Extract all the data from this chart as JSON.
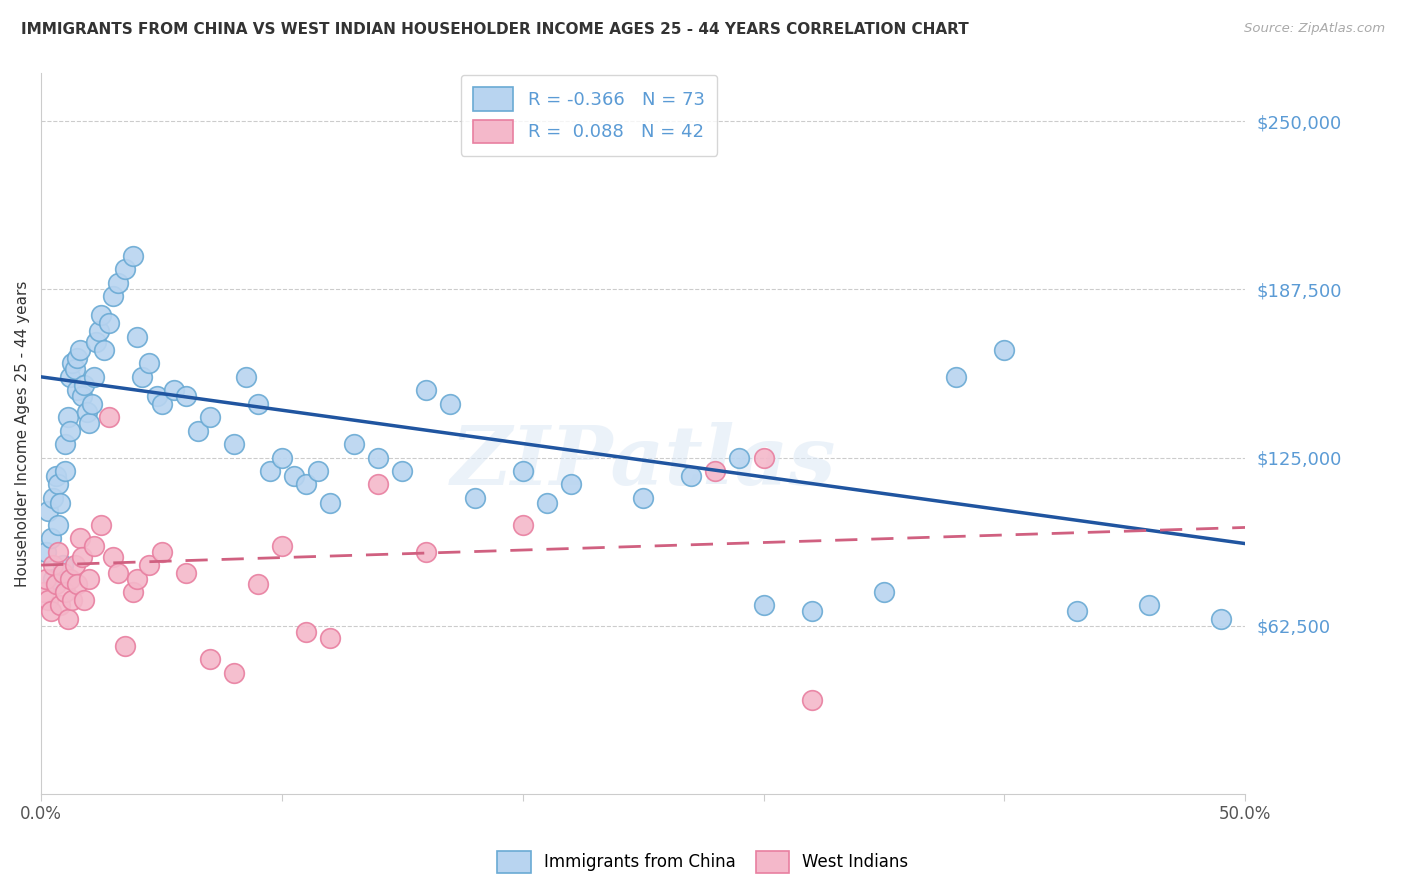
{
  "title": "IMMIGRANTS FROM CHINA VS WEST INDIAN HOUSEHOLDER INCOME AGES 25 - 44 YEARS CORRELATION CHART",
  "source": "Source: ZipAtlas.com",
  "ylabel": "Householder Income Ages 25 - 44 years",
  "ytick_labels": [
    "$250,000",
    "$187,500",
    "$125,000",
    "$62,500"
  ],
  "ytick_values": [
    250000,
    187500,
    125000,
    62500
  ],
  "ylim": [
    0,
    268000
  ],
  "xlim": [
    0.0,
    0.5
  ],
  "xtick_positions": [
    0.0,
    0.1,
    0.2,
    0.3,
    0.4,
    0.5
  ],
  "xtick_labels_show": [
    "0.0%",
    "",
    "",
    "",
    "",
    "50.0%"
  ],
  "china_R": "-0.366",
  "china_N": "73",
  "westindian_R": "0.088",
  "westindian_N": "42",
  "china_face": "#b8d4f0",
  "china_edge": "#6aaad4",
  "wi_face": "#f4b8ca",
  "wi_edge": "#e87fa0",
  "china_line_color": "#2055a0",
  "wi_line_color": "#d06080",
  "grid_color": "#cccccc",
  "text_color": "#333333",
  "source_color": "#aaaaaa",
  "axis_label_color": "#5b9bd5",
  "bg": "#ffffff",
  "watermark": "ZIPatlas",
  "china_line_x0": 0.0,
  "china_line_y0": 155000,
  "china_line_x1": 0.5,
  "china_line_y1": 93000,
  "wi_line_x0": 0.0,
  "wi_line_y0": 85000,
  "wi_line_x1": 0.5,
  "wi_line_y1": 99000,
  "china_pts_x": [
    0.002,
    0.003,
    0.004,
    0.005,
    0.005,
    0.006,
    0.007,
    0.007,
    0.008,
    0.009,
    0.01,
    0.01,
    0.011,
    0.012,
    0.012,
    0.013,
    0.014,
    0.015,
    0.015,
    0.016,
    0.017,
    0.018,
    0.019,
    0.02,
    0.021,
    0.022,
    0.023,
    0.024,
    0.025,
    0.026,
    0.028,
    0.03,
    0.032,
    0.035,
    0.038,
    0.04,
    0.042,
    0.045,
    0.048,
    0.05,
    0.055,
    0.06,
    0.065,
    0.07,
    0.08,
    0.085,
    0.09,
    0.095,
    0.1,
    0.105,
    0.11,
    0.115,
    0.12,
    0.13,
    0.14,
    0.15,
    0.16,
    0.17,
    0.18,
    0.2,
    0.21,
    0.22,
    0.25,
    0.27,
    0.29,
    0.3,
    0.32,
    0.35,
    0.38,
    0.4,
    0.43,
    0.46,
    0.49
  ],
  "china_pts_y": [
    90000,
    105000,
    95000,
    80000,
    110000,
    118000,
    100000,
    115000,
    108000,
    85000,
    130000,
    120000,
    140000,
    135000,
    155000,
    160000,
    158000,
    162000,
    150000,
    165000,
    148000,
    152000,
    142000,
    138000,
    145000,
    155000,
    168000,
    172000,
    178000,
    165000,
    175000,
    185000,
    190000,
    195000,
    200000,
    170000,
    155000,
    160000,
    148000,
    145000,
    150000,
    148000,
    135000,
    140000,
    130000,
    155000,
    145000,
    120000,
    125000,
    118000,
    115000,
    120000,
    108000,
    130000,
    125000,
    120000,
    150000,
    145000,
    110000,
    120000,
    108000,
    115000,
    110000,
    118000,
    125000,
    70000,
    68000,
    75000,
    155000,
    165000,
    68000,
    70000,
    65000
  ],
  "wi_pts_x": [
    0.001,
    0.002,
    0.003,
    0.004,
    0.005,
    0.006,
    0.007,
    0.008,
    0.009,
    0.01,
    0.011,
    0.012,
    0.013,
    0.014,
    0.015,
    0.016,
    0.017,
    0.018,
    0.02,
    0.022,
    0.025,
    0.028,
    0.03,
    0.032,
    0.035,
    0.038,
    0.04,
    0.045,
    0.05,
    0.06,
    0.07,
    0.08,
    0.09,
    0.1,
    0.11,
    0.12,
    0.14,
    0.16,
    0.2,
    0.28,
    0.3,
    0.32
  ],
  "wi_pts_y": [
    75000,
    80000,
    72000,
    68000,
    85000,
    78000,
    90000,
    70000,
    82000,
    75000,
    65000,
    80000,
    72000,
    85000,
    78000,
    95000,
    88000,
    72000,
    80000,
    92000,
    100000,
    140000,
    88000,
    82000,
    55000,
    75000,
    80000,
    85000,
    90000,
    82000,
    50000,
    45000,
    78000,
    92000,
    60000,
    58000,
    115000,
    90000,
    100000,
    120000,
    125000,
    35000
  ]
}
